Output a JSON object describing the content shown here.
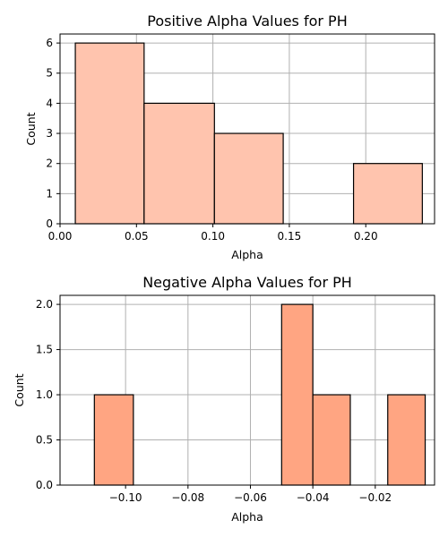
{
  "chart_data": [
    {
      "type": "bar",
      "title": "Positive Alpha Values for PH",
      "xlabel": "Alpha",
      "ylabel": "Count",
      "xlim": [
        0.0,
        0.245
      ],
      "ylim": [
        0,
        6.3
      ],
      "xticks": [
        0.0,
        0.05,
        0.1,
        0.15,
        0.2
      ],
      "xtick_labels": [
        "0.00",
        "0.05",
        "0.10",
        "0.15",
        "0.20"
      ],
      "yticks": [
        0,
        1,
        2,
        3,
        4,
        5,
        6
      ],
      "ytick_labels": [
        "0",
        "1",
        "2",
        "3",
        "4",
        "5",
        "6"
      ],
      "bins": [
        {
          "x0": 0.01,
          "x1": 0.055,
          "value": 6
        },
        {
          "x0": 0.055,
          "x1": 0.101,
          "value": 4
        },
        {
          "x0": 0.101,
          "x1": 0.146,
          "value": 3
        },
        {
          "x0": 0.146,
          "x1": 0.192,
          "value": 0
        },
        {
          "x0": 0.192,
          "x1": 0.237,
          "value": 2
        }
      ],
      "grid": true,
      "bar_color": "#ffc4ae"
    },
    {
      "type": "bar",
      "title": "Negative Alpha Values for PH",
      "xlabel": "Alpha",
      "ylabel": "Count",
      "xlim": [
        -0.121,
        -0.001
      ],
      "ylim": [
        0,
        2.1
      ],
      "xticks": [
        -0.1,
        -0.08,
        -0.06,
        -0.04,
        -0.02
      ],
      "xtick_labels": [
        "−0.10",
        "−0.08",
        "−0.06",
        "−0.04",
        "−0.02"
      ],
      "yticks": [
        0,
        0.5,
        1.0,
        1.5,
        2.0
      ],
      "ytick_labels": [
        "0.0",
        "0.5",
        "1.0",
        "1.5",
        "2.0"
      ],
      "bins": [
        {
          "x0": -0.11,
          "x1": -0.0975,
          "value": 1
        },
        {
          "x0": -0.0975,
          "x1": -0.085,
          "value": 0
        },
        {
          "x0": -0.085,
          "x1": -0.0725,
          "value": 0
        },
        {
          "x0": -0.0725,
          "x1": -0.06,
          "value": 0
        },
        {
          "x0": -0.06,
          "x1": -0.05,
          "value": 0
        },
        {
          "x0": -0.05,
          "x1": -0.04,
          "value": 2
        },
        {
          "x0": -0.04,
          "x1": -0.028,
          "value": 1
        },
        {
          "x0": -0.028,
          "x1": -0.016,
          "value": 0
        },
        {
          "x0": -0.016,
          "x1": -0.004,
          "value": 1
        }
      ],
      "grid": true,
      "bar_color": "#ffa582"
    }
  ]
}
